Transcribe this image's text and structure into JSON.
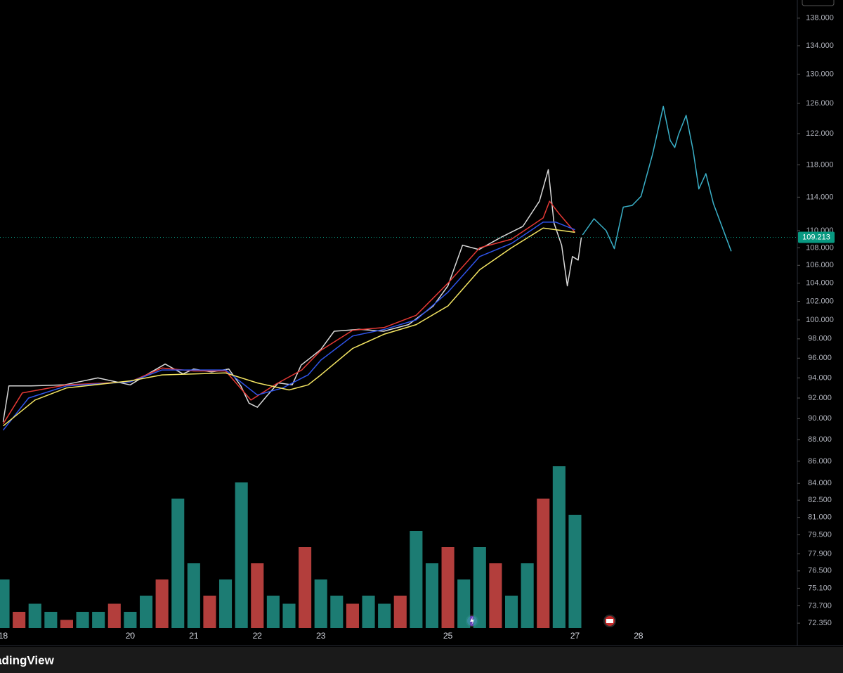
{
  "chart_data": {
    "type": "line",
    "scale": "log",
    "ylim": [
      71600,
      140700
    ],
    "yticks": [
      {
        "value": 138000,
        "label": "138.000"
      },
      {
        "value": 134000,
        "label": "134.000"
      },
      {
        "value": 130000,
        "label": "130.000"
      },
      {
        "value": 126000,
        "label": "126.000"
      },
      {
        "value": 122000,
        "label": "122.000"
      },
      {
        "value": 118000,
        "label": "118.000"
      },
      {
        "value": 114000,
        "label": "114.000"
      },
      {
        "value": 110000,
        "label": "110.000"
      },
      {
        "value": 108000,
        "label": "108.000"
      },
      {
        "value": 106000,
        "label": "106.000"
      },
      {
        "value": 104000,
        "label": "104.000"
      },
      {
        "value": 102000,
        "label": "102.000"
      },
      {
        "value": 100000,
        "label": "100.000"
      },
      {
        "value": 98000,
        "label": "98.000"
      },
      {
        "value": 96000,
        "label": "96.000"
      },
      {
        "value": 94000,
        "label": "94.000"
      },
      {
        "value": 92000,
        "label": "92.000"
      },
      {
        "value": 90000,
        "label": "90.000"
      },
      {
        "value": 88000,
        "label": "88.000"
      },
      {
        "value": 86000,
        "label": "86.000"
      },
      {
        "value": 84000,
        "label": "84.000"
      },
      {
        "value": 82500,
        "label": "82.500"
      },
      {
        "value": 81000,
        "label": "81.000"
      },
      {
        "value": 79500,
        "label": "79.500"
      },
      {
        "value": 77900,
        "label": "77.900"
      },
      {
        "value": 76500,
        "label": "76.500"
      },
      {
        "value": 75100,
        "label": "75.100"
      },
      {
        "value": 73700,
        "label": "73.700"
      },
      {
        "value": 72350,
        "label": "72.350"
      }
    ],
    "xlim": [
      17.95,
      30.5
    ],
    "xticks": [
      18,
      20,
      21,
      22,
      23,
      25,
      27,
      28
    ],
    "last_price": {
      "value": 109213,
      "label": "109.213",
      "color": "#089981"
    },
    "series": [
      {
        "color": "#d9d9d9",
        "x": [
          18.0,
          18.09,
          18.44,
          18.96,
          19.49,
          20.0,
          20.28,
          20.55,
          20.83,
          21.0,
          21.28,
          21.55,
          21.74,
          21.87,
          22.0,
          22.15,
          22.33,
          22.55,
          22.69,
          22.83,
          23.0,
          23.21,
          23.6,
          23.99,
          24.38,
          24.77,
          25.0,
          25.23,
          25.49,
          25.83,
          26.18,
          26.44,
          26.58,
          26.67,
          26.79,
          26.88,
          26.96,
          27.05,
          27.1
        ],
        "values": [
          89700,
          93200,
          93200,
          93300,
          94000,
          93300,
          94400,
          95400,
          94400,
          94900,
          94600,
          94900,
          93200,
          91500,
          91100,
          92200,
          93500,
          93300,
          95300,
          96000,
          96900,
          98800,
          99000,
          98800,
          99500,
          101500,
          103700,
          108300,
          107800,
          109200,
          110500,
          113500,
          117400,
          110900,
          108300,
          103700,
          107000,
          106600,
          109200
        ]
      },
      {
        "color": "#e53935",
        "x": [
          18.0,
          18.3,
          19.0,
          20.0,
          20.5,
          21.0,
          21.5,
          21.9,
          22.3,
          22.7,
          23.0,
          23.5,
          24.0,
          24.5,
          25.0,
          25.5,
          26.0,
          26.5,
          26.6,
          26.75,
          27.0
        ],
        "values": [
          89500,
          92500,
          93300,
          93600,
          95000,
          94700,
          94700,
          91800,
          93400,
          94800,
          96800,
          98900,
          99200,
          100500,
          104000,
          108000,
          109000,
          111500,
          113500,
          112000,
          109800
        ]
      },
      {
        "color": "#2f54eb",
        "x": [
          18.0,
          18.4,
          19.0,
          20.0,
          20.5,
          21.0,
          21.5,
          22.0,
          22.4,
          22.8,
          23.0,
          23.5,
          24.0,
          24.5,
          25.0,
          25.5,
          26.0,
          26.5,
          26.7,
          27.0
        ],
        "values": [
          88900,
          92000,
          93200,
          93600,
          94800,
          94800,
          94800,
          92300,
          93000,
          94300,
          95800,
          98300,
          99000,
          100000,
          103000,
          107000,
          108500,
          111000,
          111000,
          110100
        ]
      },
      {
        "color": "#f5e663",
        "x": [
          18.0,
          18.5,
          19.0,
          20.0,
          20.5,
          21.0,
          21.5,
          22.0,
          22.5,
          22.8,
          23.0,
          23.5,
          24.0,
          24.5,
          25.0,
          25.5,
          26.0,
          26.5,
          27.0
        ],
        "values": [
          89300,
          91800,
          93000,
          93700,
          94300,
          94400,
          94500,
          93500,
          92800,
          93300,
          94300,
          97000,
          98500,
          99500,
          101500,
          105500,
          108000,
          110300,
          109800
        ]
      },
      {
        "color": "#3ab0c8",
        "x": [
          27.12,
          27.3,
          27.49,
          27.62,
          27.76,
          27.9,
          28.04,
          28.22,
          28.39,
          28.5,
          28.57,
          28.63,
          28.75,
          28.86,
          28.95,
          29.06,
          29.18,
          29.46
        ],
        "values": [
          109500,
          111400,
          110000,
          107900,
          112800,
          113000,
          114100,
          119300,
          125600,
          121100,
          120200,
          121900,
          124400,
          119800,
          115000,
          116900,
          113200,
          107600
        ]
      }
    ],
    "volume": {
      "color": "#26a69a",
      "x": [
        18,
        18.25,
        18.5,
        18.75,
        19,
        19.25,
        19.5,
        19.75,
        20,
        20.25,
        20.5,
        20.75,
        21,
        21.25,
        21.5,
        21.75,
        22,
        22.25,
        22.5,
        22.75,
        23,
        23.25,
        23.5,
        23.75,
        24,
        24.25,
        24.5,
        24.75,
        25,
        25.25,
        25.5,
        25.75,
        26,
        26.25,
        26.5,
        26.75,
        27
      ],
      "values": [
        3,
        1,
        1.5,
        1,
        0.5,
        1,
        1,
        1.5,
        1,
        2,
        3,
        8,
        4,
        2,
        3,
        9,
        4,
        2,
        1.5,
        5,
        3,
        2,
        1.5,
        2,
        1.5,
        2,
        6,
        4,
        5,
        3,
        5,
        4,
        2,
        4,
        8,
        10,
        7
      ]
    }
  },
  "footer": {
    "brand": "TradingView"
  }
}
